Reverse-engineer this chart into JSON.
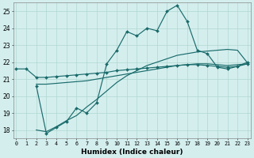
{
  "bg_color": "#d4eeee",
  "grid_color": "#b0d8d0",
  "line_color": "#1a6b6b",
  "xlim": [
    0,
    23
  ],
  "ylim": [
    17.5,
    25.5
  ],
  "yticks": [
    18,
    19,
    20,
    21,
    22,
    23,
    24,
    25
  ],
  "xticks": [
    0,
    1,
    2,
    3,
    4,
    5,
    6,
    7,
    8,
    9,
    10,
    11,
    12,
    13,
    14,
    15,
    16,
    17,
    18,
    19,
    20,
    21,
    22,
    23
  ],
  "xlabel": "Humidex (Indice chaleur)",
  "c1_x": [
    0,
    1,
    2,
    3,
    4,
    5,
    6,
    7,
    8,
    9,
    10,
    11,
    12,
    13,
    14,
    15,
    16,
    17,
    18,
    19,
    20,
    21,
    22,
    23
  ],
  "c1_y": [
    21.6,
    21.6,
    21.1,
    21.1,
    21.15,
    21.2,
    21.25,
    21.3,
    21.35,
    21.4,
    21.5,
    21.55,
    21.6,
    21.65,
    21.7,
    21.75,
    21.8,
    21.85,
    21.85,
    21.8,
    21.75,
    21.7,
    21.75,
    21.9
  ],
  "c2_x": [
    2,
    3,
    4,
    5,
    6,
    7,
    8,
    9,
    10,
    11,
    12,
    13,
    14,
    15,
    16,
    17,
    18,
    19,
    20,
    21,
    22,
    23
  ],
  "c2_y": [
    20.7,
    20.7,
    20.75,
    20.8,
    20.85,
    20.9,
    21.0,
    21.1,
    21.2,
    21.3,
    21.4,
    21.5,
    21.6,
    21.7,
    21.8,
    21.85,
    21.9,
    21.9,
    21.85,
    21.8,
    21.85,
    21.9
  ],
  "c3_x": [
    2,
    3,
    4,
    5,
    6,
    7,
    8,
    9,
    10,
    11,
    12,
    13,
    14,
    15,
    16,
    17,
    18,
    19,
    20,
    21,
    22,
    23
  ],
  "c3_y": [
    20.6,
    17.8,
    18.15,
    18.5,
    19.3,
    19.0,
    19.6,
    21.9,
    22.7,
    23.8,
    23.55,
    24.0,
    23.85,
    25.0,
    25.35,
    24.4,
    22.7,
    22.5,
    21.7,
    21.6,
    21.75,
    22.0
  ],
  "c4_x": [
    2,
    3,
    4,
    5,
    6,
    7,
    8,
    9,
    10,
    11,
    12,
    13,
    14,
    15,
    16,
    17,
    18,
    19,
    20,
    21,
    22,
    23
  ],
  "c4_y": [
    18.0,
    17.9,
    18.2,
    18.55,
    18.85,
    19.35,
    19.8,
    20.3,
    20.8,
    21.2,
    21.5,
    21.8,
    22.0,
    22.2,
    22.4,
    22.5,
    22.6,
    22.65,
    22.7,
    22.75,
    22.7,
    21.95
  ]
}
